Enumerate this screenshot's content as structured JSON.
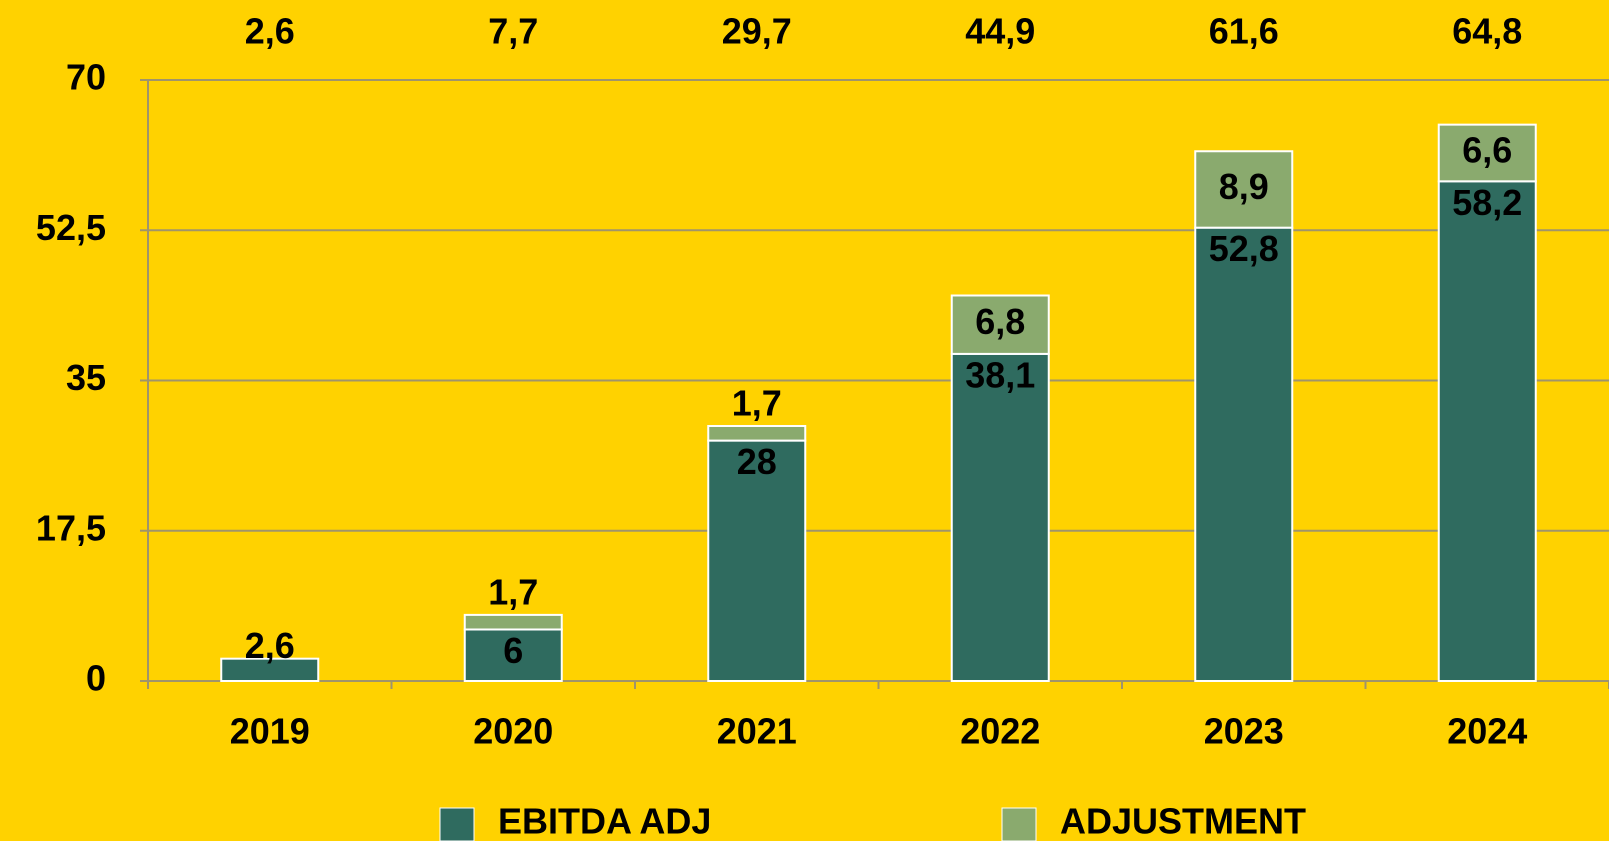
{
  "chart_data": {
    "type": "stacked_bar",
    "categories": [
      "2019",
      "2020",
      "2021",
      "2022",
      "2023",
      "2024"
    ],
    "series": [
      {
        "name": "EBITDA ADJ",
        "color": "#2f6b5f",
        "values": [
          2.6,
          6,
          28,
          38.1,
          52.8,
          58.2
        ],
        "value_labels": [
          "2,6",
          "6",
          "28",
          "38,1",
          "52,8",
          "58,2"
        ]
      },
      {
        "name": "ADJUSTMENT",
        "color": "#8aaa6e",
        "values": [
          null,
          1.7,
          1.7,
          6.8,
          8.9,
          6.6
        ],
        "value_labels": [
          null,
          "1,7",
          "1,7",
          "6,8",
          "8,9",
          "6,6"
        ]
      }
    ],
    "totals": [
      2.6,
      7.7,
      29.7,
      44.9,
      61.6,
      64.8
    ],
    "total_labels": [
      "2,6",
      "7,7",
      "29,7",
      "44,9",
      "61,6",
      "64,8"
    ],
    "ylim": [
      0,
      70
    ],
    "yticks": [
      0,
      {
        "value": 17.5,
        "label": "17,5"
      },
      35,
      {
        "value": 52.5,
        "label": "52,5"
      },
      70
    ],
    "grid": true,
    "legend": "bottom"
  }
}
